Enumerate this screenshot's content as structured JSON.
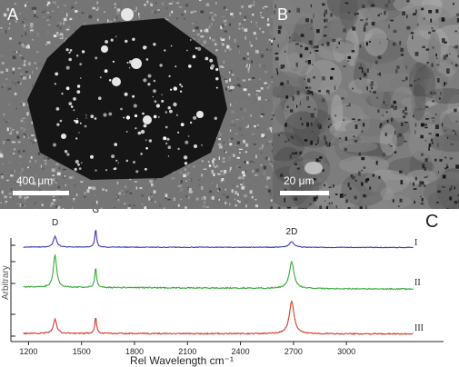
{
  "panels": {
    "a": {
      "letter": "A",
      "scale_label": "400 μm"
    },
    "b": {
      "letter": "B",
      "scale_label": "20 μm"
    },
    "c": {
      "letter": "C"
    }
  },
  "chart_data": {
    "type": "line",
    "xlabel": "Rel Wavelength cm⁻¹",
    "ylabel": "Arbitrary",
    "x_ticks": [
      1200,
      1500,
      1800,
      2100,
      2400,
      2700,
      3000
    ],
    "xlim": [
      1100,
      3550
    ],
    "peaks": [
      {
        "label": "D",
        "x": 1350
      },
      {
        "label": "G",
        "x": 1580
      },
      {
        "label": "2D",
        "x": 2690
      }
    ],
    "series": [
      {
        "name": "I",
        "color": "#3a3ab8",
        "baseline": 0.0,
        "heights": [
          0.55,
          0.9,
          0.28
        ]
      },
      {
        "name": "II",
        "color": "#3aa83a",
        "baseline": 0.0,
        "heights": [
          1.0,
          0.62,
          0.8
        ]
      },
      {
        "name": "III",
        "color": "#d43a2a",
        "baseline": 0.0,
        "heights": [
          0.45,
          0.5,
          1.0
        ]
      }
    ]
  }
}
